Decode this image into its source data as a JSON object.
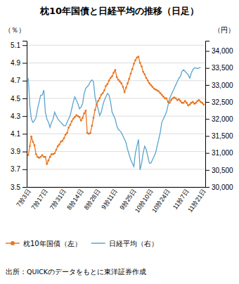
{
  "chart_data": {
    "type": "line",
    "title": "枕10年国債と日経平均の推移（日足）",
    "ylabel": "（％）",
    "y2label": "（円）",
    "source": "出所：QUICKのデータをもとに東洋証券作成",
    "categories": [
      "7朎3日",
      null,
      null,
      null,
      null,
      null,
      null,
      null,
      null,
      null,
      null,
      "7朎17日",
      null,
      null,
      null,
      null,
      null,
      null,
      null,
      null,
      null,
      null,
      null,
      "7朎31日",
      null,
      null,
      null,
      null,
      null,
      null,
      null,
      null,
      null,
      null,
      "8朎14日",
      null,
      null,
      null,
      null,
      null,
      null,
      null,
      null,
      null,
      null,
      "8朎28日",
      null,
      null,
      null,
      null,
      null,
      null,
      null,
      null,
      null,
      null,
      "9朎11日",
      null,
      null,
      null,
      null,
      null,
      null,
      null,
      null,
      null,
      null,
      null,
      "9朎25日",
      null,
      null,
      null,
      null,
      null,
      null,
      null,
      null,
      null,
      null,
      "10朎10日",
      null,
      null,
      null,
      null,
      null,
      null,
      null,
      null,
      null,
      null,
      "10朎24日",
      null,
      null,
      null,
      null,
      null,
      null,
      null,
      null,
      null,
      null,
      null,
      "11朎7日",
      null,
      null,
      null,
      null,
      null,
      null,
      null,
      null,
      null,
      null,
      "11朎21日"
    ],
    "series": [
      {
        "name": "枕10年国債（左）",
        "color": "#E87722",
        "marker": "circle",
        "values": [
          3.86,
          3.96,
          4.07,
          4.01,
          3.97,
          3.87,
          3.84,
          3.83,
          3.84,
          3.86,
          3.84,
          3.84,
          3.76,
          3.8,
          3.84,
          3.87,
          3.87,
          3.88,
          3.92,
          3.96,
          3.98,
          4.01,
          4.02,
          4.05,
          4.09,
          4.11,
          4.17,
          4.2,
          4.24,
          4.27,
          4.29,
          4.31,
          4.3,
          4.29,
          4.25,
          4.28,
          4.33,
          4.36,
          4.11,
          4.1,
          4.11,
          4.19,
          4.28,
          4.37,
          4.43,
          4.47,
          4.5,
          4.54,
          4.56,
          4.59,
          4.64,
          4.66,
          4.7,
          4.73,
          4.75,
          4.79,
          4.82,
          4.74,
          4.71,
          4.69,
          4.67,
          4.63,
          4.57,
          4.62,
          4.67,
          4.72,
          4.78,
          4.83,
          4.89,
          4.93,
          4.96,
          4.97,
          4.9,
          4.86,
          4.8,
          4.77,
          4.73,
          4.7,
          4.67,
          4.65,
          4.63,
          4.61,
          4.6,
          4.59,
          4.58,
          4.56,
          4.54,
          4.52,
          4.5,
          4.5,
          4.46,
          4.45,
          4.48,
          4.5,
          4.51,
          4.5,
          4.48,
          4.49,
          4.47,
          4.45,
          4.45,
          4.47,
          4.45,
          4.42,
          4.43,
          4.45,
          4.46,
          4.44,
          4.45,
          4.47,
          4.48,
          4.46,
          4.45,
          4.43
        ]
      },
      {
        "name": "日経平均（右）",
        "color": "#5BA4CF",
        "axis": "y2",
        "values": [
          33200,
          32400,
          32000,
          31900,
          31950,
          32050,
          32300,
          32500,
          32700,
          32700,
          32850,
          32200,
          32000,
          31900,
          31750,
          31900,
          32000,
          32200,
          32100,
          32000,
          31950,
          31900,
          31850,
          31800,
          31800,
          31900,
          32000,
          32100,
          32300,
          32500,
          32650,
          32550,
          32450,
          32300,
          32350,
          32450,
          32750,
          32900,
          32950,
          33000,
          33100,
          33150,
          33100,
          32650,
          32450,
          32300,
          32100,
          32200,
          32400,
          32550,
          32650,
          32750,
          32700,
          32500,
          32200,
          32100,
          32000,
          31800,
          31700,
          31650,
          31600,
          31500,
          31400,
          31300,
          31100,
          30950,
          30800,
          30700,
          30600,
          31000,
          31200,
          31400,
          30500,
          30700,
          31000,
          31200,
          31100,
          30900,
          30700,
          30700,
          30800,
          30900,
          31000,
          31200,
          31400,
          31600,
          31900,
          32000,
          32100,
          32200,
          32400,
          32600,
          32700,
          32800,
          32900,
          33000,
          33100,
          33200,
          33250,
          33400,
          33450,
          33400,
          33350,
          33300,
          33200,
          33350,
          33450,
          33500,
          33500,
          33480,
          33500,
          33520,
          null,
          null
        ]
      }
    ],
    "ylim": [
      3.5,
      5.15
    ],
    "yticks": [
      3.5,
      3.7,
      3.9,
      4.1,
      4.3,
      4.5,
      4.7,
      4.9,
      5.1
    ],
    "y2lim": [
      30000,
      34300
    ],
    "y2ticks": [
      {
        "value": 30000,
        "label": "30,000"
      },
      {
        "value": 30500,
        "label": "30,500"
      },
      {
        "value": 31000,
        "label": "31,000"
      },
      {
        "value": 31500,
        "label": "31,500"
      },
      {
        "value": 32000,
        "label": "32,000"
      },
      {
        "value": 32500,
        "label": "32,500"
      },
      {
        "value": 33000,
        "label": "33,000"
      },
      {
        "value": 33500,
        "label": "33,500"
      },
      {
        "value": 34000,
        "label": "34,000"
      }
    ],
    "grid": true,
    "legend": "bottom"
  }
}
